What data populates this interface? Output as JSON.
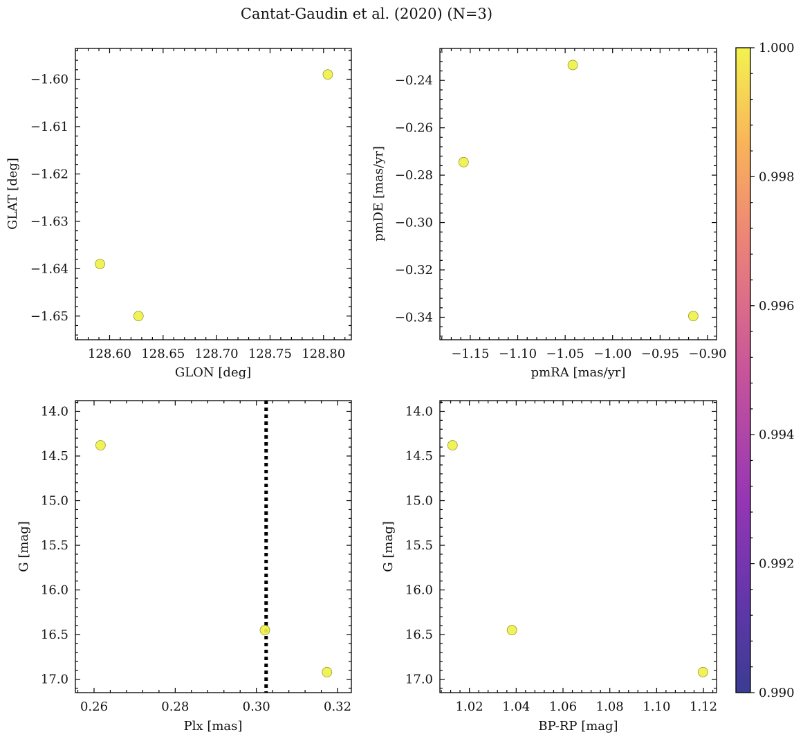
{
  "title": "Cantat-Gaudin et al. (2020) (N=3)",
  "colors": {
    "point": "#eef24a",
    "point_edge": "#9a9a30",
    "frame": "#000000",
    "vline": "#000000"
  },
  "chart_data": [
    {
      "id": "glon_glat",
      "type": "scatter",
      "xlabel": "GLON [deg]",
      "ylabel": "GLAT [deg]",
      "xlim": [
        128.568,
        128.826
      ],
      "ylim": [
        -1.655,
        -1.5935
      ],
      "xticks": [
        128.6,
        128.65,
        128.7,
        128.75,
        128.8
      ],
      "xtick_labels": [
        "128.60",
        "128.65",
        "128.70",
        "128.75",
        "128.80"
      ],
      "yticks": [
        -1.6,
        -1.61,
        -1.62,
        -1.63,
        -1.64,
        -1.65
      ],
      "ytick_labels": [
        "−1.60",
        "−1.61",
        "−1.62",
        "−1.63",
        "−1.64",
        "−1.65"
      ],
      "x": [
        128.804,
        128.591,
        128.627
      ],
      "y": [
        -1.599,
        -1.639,
        -1.65
      ]
    },
    {
      "id": "pmra_pmde",
      "type": "scatter",
      "xlabel": "pmRA [mas/yr]",
      "ylabel": "pmDE [mas/yr]",
      "xlim": [
        -1.182,
        -0.8905
      ],
      "ylim": [
        -0.3495,
        -0.2265
      ],
      "xticks": [
        -1.15,
        -1.1,
        -1.05,
        -1.0,
        -0.95,
        -0.9
      ],
      "xtick_labels": [
        "−1.15",
        "−1.10",
        "−1.05",
        "−1.00",
        "−0.95",
        "−0.90"
      ],
      "yticks": [
        -0.24,
        -0.26,
        -0.28,
        -0.3,
        -0.32,
        -0.34
      ],
      "ytick_labels": [
        "−0.24",
        "−0.26",
        "−0.28",
        "−0.30",
        "−0.32",
        "−0.34"
      ],
      "x": [
        -1.042,
        -1.157,
        -0.915
      ],
      "y": [
        -0.2335,
        -0.2745,
        -0.3395
      ]
    },
    {
      "id": "plx_g",
      "type": "scatter",
      "xlabel": "Plx [mas]",
      "ylabel": "G [mag]",
      "xlim": [
        0.2554,
        0.3234
      ],
      "ylim": [
        17.15,
        13.88
      ],
      "xticks": [
        0.26,
        0.28,
        0.3,
        0.32
      ],
      "xtick_labels": [
        "0.26",
        "0.28",
        "0.30",
        "0.32"
      ],
      "yticks": [
        14.0,
        14.5,
        15.0,
        15.5,
        16.0,
        16.5,
        17.0
      ],
      "ytick_labels": [
        "14.0",
        "14.5",
        "15.0",
        "15.5",
        "16.0",
        "16.5",
        "17.0"
      ],
      "x": [
        0.2616,
        0.3021,
        0.3174
      ],
      "y": [
        14.38,
        16.45,
        16.92
      ],
      "vline": 0.3024
    },
    {
      "id": "bprp_g",
      "type": "scatter",
      "xlabel": "BP-RP [mag]",
      "ylabel": "G [mag]",
      "xlim": [
        1.0074,
        1.1256
      ],
      "ylim": [
        17.15,
        13.88
      ],
      "xticks": [
        1.02,
        1.04,
        1.06,
        1.08,
        1.1,
        1.12
      ],
      "xtick_labels": [
        "1.02",
        "1.04",
        "1.06",
        "1.08",
        "1.10",
        "1.12"
      ],
      "yticks": [
        14.0,
        14.5,
        15.0,
        15.5,
        16.0,
        16.5,
        17.0
      ],
      "ytick_labels": [
        "14.0",
        "14.5",
        "15.0",
        "15.5",
        "16.0",
        "16.5",
        "17.0"
      ],
      "x": [
        1.0128,
        1.0382,
        1.1198
      ],
      "y": [
        14.38,
        16.45,
        16.92
      ]
    },
    {
      "id": "colorbar",
      "type": "colorbar",
      "range": [
        0.99,
        1.0
      ],
      "ticks": [
        1.0,
        0.998,
        0.996,
        0.994,
        0.992,
        0.99
      ],
      "tick_labels": [
        "1.000",
        "0.998",
        "0.996",
        "0.994",
        "0.992",
        "0.990"
      ],
      "colormap": "plasma"
    }
  ]
}
